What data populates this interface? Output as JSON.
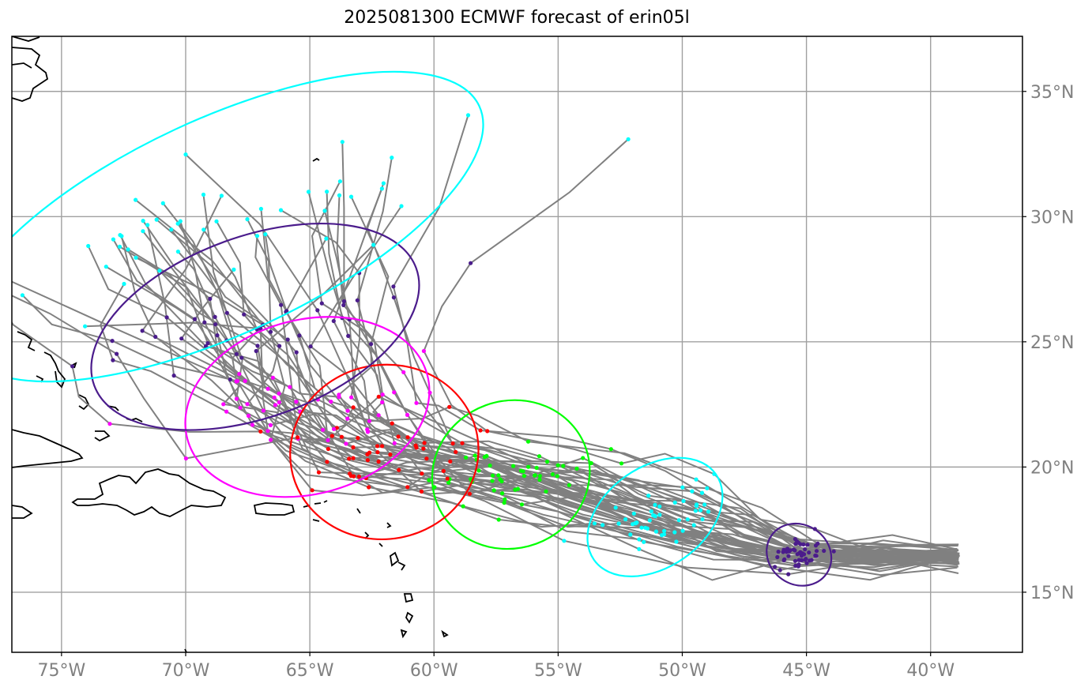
{
  "title": "2025081300 ECMWF forecast of erin05l",
  "map": {
    "lon_range": [
      -77,
      -36.3
    ],
    "lat_range": [
      12.6,
      37.2
    ],
    "lon_ticks": [
      {
        "value": -75,
        "label": "75°W"
      },
      {
        "value": -70,
        "label": "70°W"
      },
      {
        "value": -65,
        "label": "65°W"
      },
      {
        "value": -60,
        "label": "60°W"
      },
      {
        "value": -55,
        "label": "55°W"
      },
      {
        "value": -50,
        "label": "50°W"
      },
      {
        "value": -45,
        "label": "45°W"
      },
      {
        "value": -40,
        "label": "40°W"
      }
    ],
    "lat_ticks": [
      {
        "value": 15,
        "label": "15°N"
      },
      {
        "value": 20,
        "label": "20°N"
      },
      {
        "value": 25,
        "label": "25°N"
      },
      {
        "value": 30,
        "label": "30°N"
      },
      {
        "value": 35,
        "label": "35°N"
      }
    ],
    "grid": true,
    "colors": {
      "track": "#808080",
      "grid": "#a0a0a0",
      "coast": "#000000",
      "tick_label": "#808080",
      "day1": "#4b1c8c",
      "day2": "#00ffff",
      "day3": "#00ff00",
      "day4": "#ff0000",
      "day5": "#ff00ff",
      "day6": "#4b1c8c",
      "day7": "#00ffff"
    },
    "origin": {
      "lon": -38.9,
      "lat": 16.4
    },
    "ensemble_tracks_lead_points": [
      {
        "color": "day1",
        "center": [
          -45.3,
          16.5
        ],
        "radius": [
          1.2,
          1.0
        ],
        "ellipse_tilt": -55
      },
      {
        "color": "day2",
        "center": [
          -51.1,
          18.0
        ],
        "radius": [
          3.0,
          1.5
        ],
        "ellipse_tilt": -35
      },
      {
        "color": "day3",
        "center": [
          -56.9,
          19.7
        ],
        "radius": [
          3.2,
          2.2
        ],
        "ellipse_tilt": -20
      },
      {
        "color": "day4",
        "center": [
          -62.0,
          20.6
        ],
        "radius": [
          3.8,
          2.6
        ],
        "ellipse_tilt": -10
      },
      {
        "color": "day5",
        "center": [
          -65.1,
          22.4
        ],
        "radius": [
          5.0,
          2.6
        ],
        "ellipse_tilt": -15
      },
      {
        "color": "day6",
        "center": [
          -67.2,
          25.6
        ],
        "radius": [
          6.9,
          2.7
        ],
        "ellipse_tilt": -20
      },
      {
        "color": "day7",
        "center": [
          -68.6,
          29.6
        ],
        "radius": [
          11.5,
          3.2
        ],
        "ellipse_tilt": -25
      }
    ]
  }
}
